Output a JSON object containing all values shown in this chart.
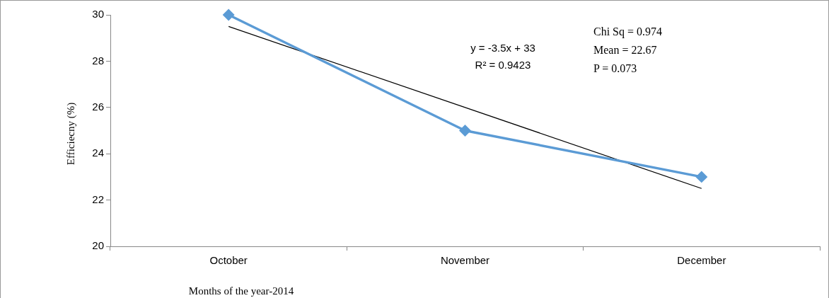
{
  "chart_data": {
    "type": "line",
    "xlabel": "Months of the year-2014",
    "ylabel": "Efficiecny (%)",
    "categories": [
      "October",
      "November",
      "December"
    ],
    "series": [
      {
        "color": "#5b9bd5",
        "values": [
          30,
          25,
          23
        ],
        "marker": "diamond"
      },
      {
        "type": "line",
        "x": [
          "October",
          "December"
        ],
        "values": [
          29.5,
          22.5
        ],
        "color": "#000000",
        "marker": "none"
      }
    ],
    "ylim": [
      20,
      30
    ],
    "yticks": [
      20,
      22,
      24,
      26,
      28,
      30
    ],
    "legend": false,
    "annotations": [
      "y = -3.5x + 33",
      "R² = 0.9423",
      "Chi Sq = 0.974",
      "Mean = 22.67",
      "P = 0.073"
    ]
  }
}
